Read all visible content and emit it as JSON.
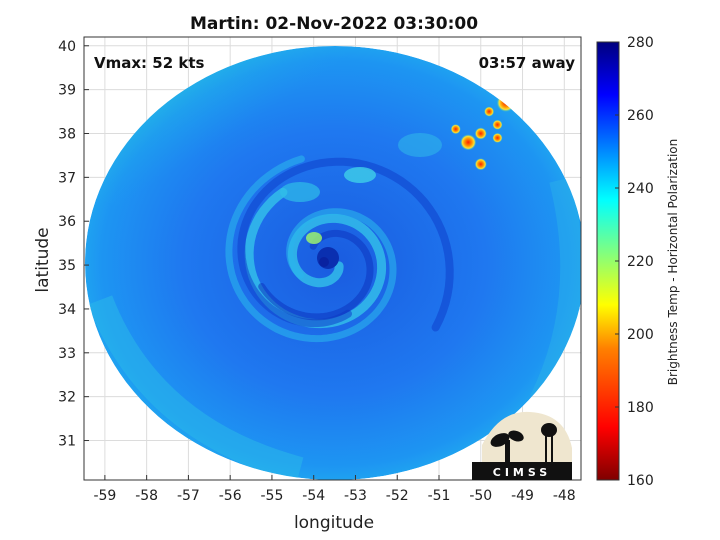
{
  "header": {
    "title": "Martin: 02-Nov-2022 03:30:00"
  },
  "annotations": {
    "vmax": "Vmax: 52 kts",
    "away": "03:57 away"
  },
  "axes": {
    "xlabel": "longitude",
    "ylabel": "latitude",
    "xticks": [
      -59,
      -58,
      -57,
      -56,
      -55,
      -54,
      -53,
      -52,
      -51,
      -50,
      -49,
      -48
    ],
    "xtick_labels": [
      "-59",
      "-58",
      "-57",
      "-56",
      "-55",
      "-54",
      "-53",
      "-52",
      "-51",
      "-50",
      "-49",
      "-48"
    ],
    "yticks": [
      31,
      32,
      33,
      34,
      35,
      36,
      37,
      38,
      39,
      40
    ],
    "ytick_labels": [
      "31",
      "32",
      "33",
      "34",
      "35",
      "36",
      "37",
      "38",
      "39",
      "40"
    ],
    "xlim": [
      -59.5,
      -47.6
    ],
    "ylim": [
      30.1,
      40.2
    ]
  },
  "colorbar": {
    "label": "Brightness Temp - Horizontal Polarization",
    "ticks": [
      160,
      180,
      200,
      220,
      240,
      260,
      280
    ],
    "tick_labels": [
      "160",
      "180",
      "200",
      "220",
      "240",
      "260",
      "280"
    ],
    "range": [
      160,
      280
    ],
    "colormap": "jet"
  },
  "logo": {
    "text": "CIMSS"
  },
  "colors": {
    "background_swath": "#1e6ef0",
    "grid": "#dcdcdc",
    "axis": "#333333"
  },
  "storm": {
    "center_lon": -53.7,
    "center_lat": 35.1
  }
}
